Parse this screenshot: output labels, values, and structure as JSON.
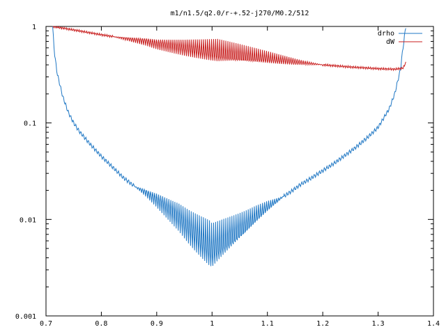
{
  "chart_data": {
    "type": "line",
    "title": "m1/n1.5/q2.0/r-+.52-j270/M0.2/512",
    "xlabel": "",
    "ylabel": "",
    "xlim": [
      0.7,
      1.4
    ],
    "ylim": [
      0.001,
      1
    ],
    "y_scale": "log",
    "grid": false,
    "legend_position": "top-right",
    "x_ticks": [
      0.7,
      0.8,
      0.9,
      1.0,
      1.1,
      1.2,
      1.3,
      1.4
    ],
    "x_tick_labels": [
      "0.7",
      "0.8",
      "0.9",
      "1",
      "1.1",
      "1.2",
      "1.3",
      "1.4"
    ],
    "y_ticks": [
      1,
      0.1,
      0.01,
      0.001
    ],
    "y_tick_labels": [
      "1",
      "0.1",
      "0.01",
      "0.001"
    ],
    "series": [
      {
        "name": "drho",
        "color": "#1f77c4",
        "x": [
          0.712,
          0.715,
          0.72,
          0.73,
          0.74,
          0.75,
          0.76,
          0.78,
          0.8,
          0.82,
          0.84,
          0.86,
          0.88,
          0.9,
          0.92,
          0.94,
          0.96,
          0.98,
          1.0,
          1.02,
          1.04,
          1.06,
          1.08,
          1.1,
          1.12,
          1.14,
          1.16,
          1.18,
          1.2,
          1.22,
          1.24,
          1.26,
          1.28,
          1.3,
          1.32,
          1.33,
          1.34,
          1.345,
          1.35
        ],
        "y": [
          1.0,
          0.55,
          0.33,
          0.19,
          0.13,
          0.1,
          0.082,
          0.06,
          0.045,
          0.035,
          0.027,
          0.022,
          0.019,
          0.016,
          0.013,
          0.0105,
          0.008,
          0.0063,
          0.005,
          0.006,
          0.0072,
          0.0088,
          0.011,
          0.0135,
          0.016,
          0.019,
          0.023,
          0.027,
          0.032,
          0.038,
          0.046,
          0.056,
          0.07,
          0.09,
          0.14,
          0.2,
          0.35,
          0.6,
          1.0
        ],
        "oscillation_range": [
          0.86,
          1.13
        ]
      },
      {
        "name": "dW",
        "color": "#c81e1e",
        "x": [
          0.712,
          0.75,
          0.8,
          0.85,
          0.88,
          0.9,
          0.95,
          1.0,
          1.05,
          1.1,
          1.15,
          1.2,
          1.25,
          1.3,
          1.33,
          1.345,
          1.35
        ],
        "y": [
          1.0,
          0.92,
          0.82,
          0.74,
          0.7,
          0.66,
          0.6,
          0.55,
          0.51,
          0.47,
          0.43,
          0.4,
          0.38,
          0.365,
          0.36,
          0.37,
          0.42
        ],
        "oscillation_range": [
          0.82,
          1.2
        ]
      }
    ]
  }
}
